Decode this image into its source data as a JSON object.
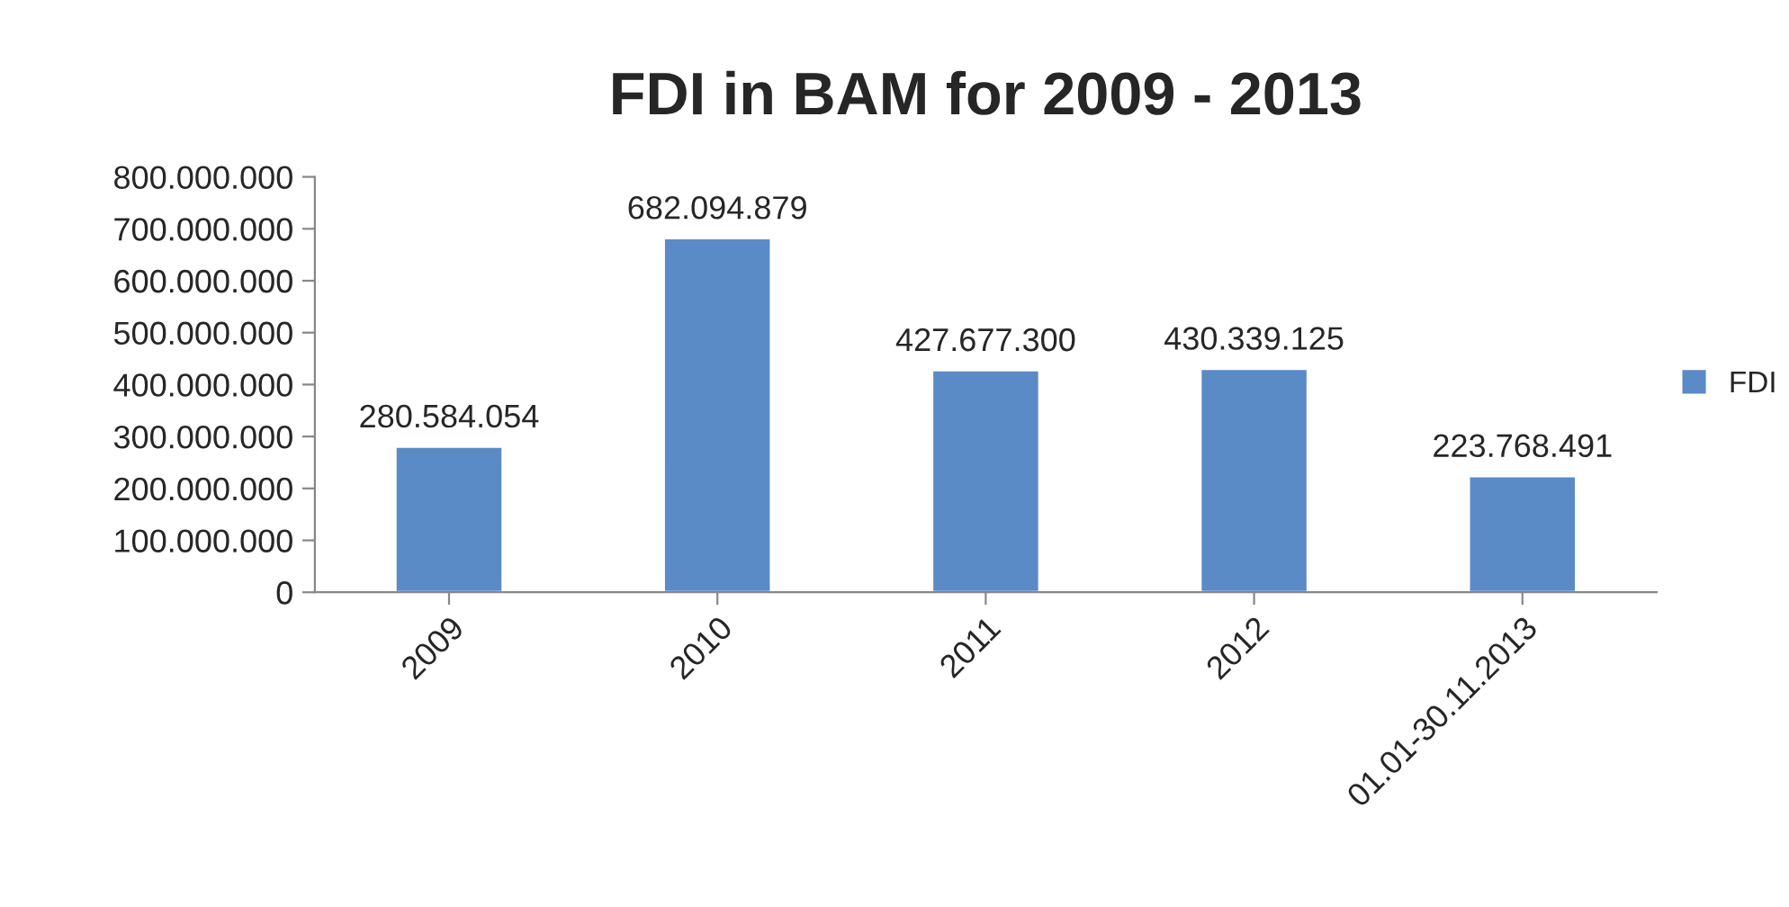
{
  "chart_data": {
    "type": "bar",
    "title": "FDI in BAM for 2009 - 2013",
    "categories": [
      "2009",
      "2010",
      "2011",
      "2012",
      "01.01-30.11.2013"
    ],
    "series": [
      {
        "name": "FDI",
        "color": "#5b8bc6",
        "values": [
          280584054,
          682094879,
          427677300,
          430339125,
          223768491
        ],
        "value_labels": [
          "280.584.054",
          "682.094.879",
          "427.677.300",
          "430.339.125",
          "223.768.491"
        ]
      }
    ],
    "ylim": [
      0,
      800000000
    ],
    "yticks": [
      0,
      {
        "value": 100000000,
        "label": "100.000.000"
      },
      {
        "value": 200000000,
        "label": "200.000.000"
      },
      {
        "value": 300000000,
        "label": "300.000.000"
      },
      {
        "value": 400000000,
        "label": "400.000.000"
      },
      {
        "value": 500000000,
        "label": "500.000.000"
      },
      {
        "value": 600000000,
        "label": "600.000.000"
      },
      {
        "value": 700000000,
        "label": "700.000.000"
      },
      {
        "value": 800000000,
        "label": "800.000.000"
      }
    ],
    "legend": "right",
    "grid": false
  }
}
